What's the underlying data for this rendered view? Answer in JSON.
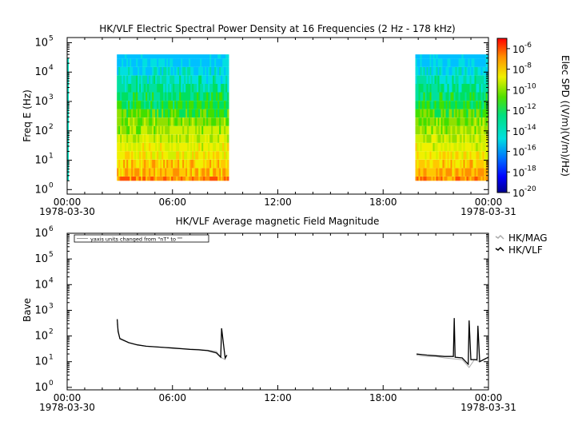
{
  "chart_data": [
    {
      "type": "heatmap",
      "title": "HK/VLF  Electric Spectral Power Density at 16 Frequencies (2 Hz - 178 kHz)",
      "ylabel": "Freq E (Hz)",
      "yscale": "log",
      "ylim": [
        0.7,
        150000
      ],
      "xlim": [
        "1978-03-30 00:00",
        "1978-03-31 00:00"
      ],
      "x_ticks": [
        "00:00",
        "06:00",
        "12:00",
        "18:00",
        "00:00"
      ],
      "x_date_labels": [
        "1978-03-30",
        "1978-03-31"
      ],
      "y_ticks": [
        1,
        10,
        100,
        1000,
        10000,
        100000
      ],
      "y_tick_exponents": [
        "0",
        "1",
        "2",
        "3",
        "4",
        "5"
      ],
      "colorbar": {
        "label": "Elec SPD ((V/m)(V/m)/Hz)",
        "scale": "log",
        "range": [
          1e-20,
          1e-05
        ],
        "tick_exponents": [
          "-6",
          "-8",
          "-10",
          "-12",
          "-14",
          "-16",
          "-18",
          "-20"
        ]
      },
      "data_intervals": [
        {
          "start": "02:50",
          "end": "09:10",
          "freq_range_hz": [
            2,
            40000
          ]
        },
        {
          "start": "19:50",
          "end": "24:00",
          "freq_range_hz": [
            2,
            40000
          ]
        }
      ]
    },
    {
      "type": "line",
      "title": "HK/VLF  Average magnetic Field Magnitude",
      "ylabel": "Bave",
      "yscale": "log",
      "ylim": [
        0.8,
        1000000
      ],
      "xlim": [
        "1978-03-30 00:00",
        "1978-03-31 00:00"
      ],
      "x_ticks": [
        "00:00",
        "06:00",
        "12:00",
        "18:00",
        "00:00"
      ],
      "x_date_labels": [
        "1978-03-30",
        "1978-03-31"
      ],
      "y_ticks": [
        1,
        10,
        100,
        1000,
        10000,
        100000,
        1000000
      ],
      "y_tick_exponents": [
        "0",
        "1",
        "2",
        "3",
        "4",
        "5",
        "6"
      ],
      "annotation": "yaxis units changed from \"nT\" to \"\"",
      "legend_position": "right",
      "series": [
        {
          "name": "HK/MAG",
          "color": "#aaaaaa",
          "x_hours": [
            2.85,
            3.0,
            3.5,
            4.0,
            4.5,
            5.0,
            5.5,
            6.0,
            6.5,
            7.0,
            7.5,
            8.0,
            8.5,
            8.75,
            9.0,
            9.1,
            19.9,
            20.5,
            21.0,
            21.5,
            22.0,
            22.5,
            22.9,
            23.2,
            23.5,
            24.0
          ],
          "y": [
            300,
            75,
            55,
            45,
            40,
            38,
            36,
            35,
            33,
            31,
            30,
            28,
            25,
            15,
            12,
            18,
            18,
            16,
            16,
            14,
            13,
            12,
            6,
            12,
            10,
            15
          ]
        },
        {
          "name": "HK/VLF",
          "color": "#000000",
          "x_hours": [
            2.85,
            2.9,
            3.0,
            3.5,
            4.0,
            4.5,
            5.0,
            5.5,
            6.0,
            6.5,
            7.0,
            7.5,
            8.0,
            8.5,
            8.75,
            8.8,
            9.0,
            9.1,
            19.9,
            20.5,
            21.0,
            21.5,
            22.0,
            22.05,
            22.1,
            22.5,
            22.85,
            22.9,
            23.0,
            23.35,
            23.4,
            23.5,
            24.0
          ],
          "y": [
            450,
            150,
            80,
            55,
            45,
            40,
            38,
            36,
            34,
            32,
            30,
            29,
            27,
            22,
            15,
            200,
            14,
            18,
            20,
            18,
            17,
            16,
            16,
            500,
            15,
            14,
            8,
            400,
            12,
            12,
            250,
            10,
            15
          ]
        }
      ]
    }
  ]
}
